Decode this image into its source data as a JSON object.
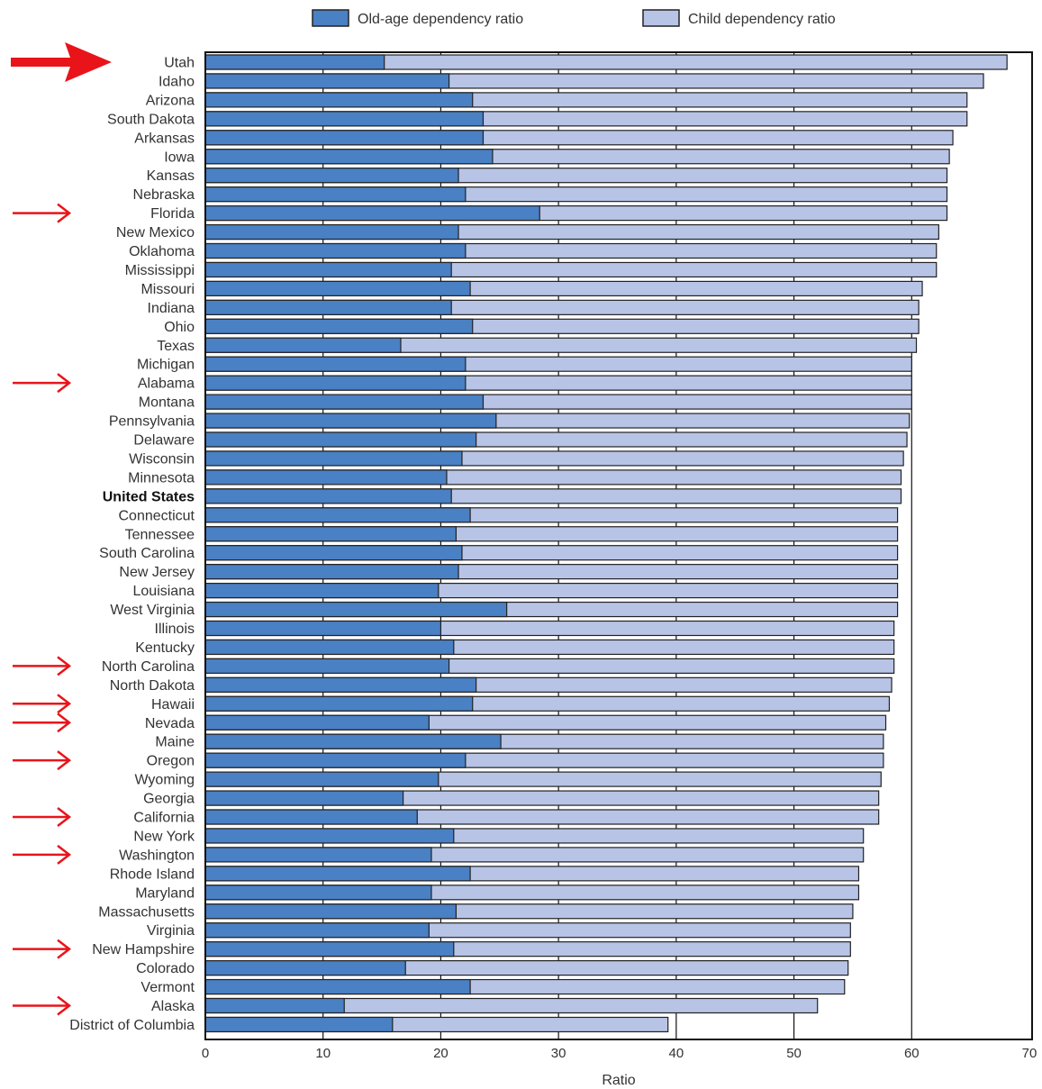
{
  "chart_data": {
    "type": "bar",
    "orientation": "horizontal",
    "stacked": true,
    "xlabel": "Ratio",
    "xlim": [
      0,
      70
    ],
    "xticks": [
      0,
      10,
      20,
      30,
      40,
      50,
      60,
      70
    ],
    "grid": "vertical",
    "legend": {
      "placement": "top"
    },
    "colors": {
      "old_age": "#4a80c4",
      "child": "#b8c4e6",
      "arrow": "#e8141a",
      "outline": "#222222"
    },
    "highlighted": "United States",
    "marked_categories": [
      "Utah",
      "Florida",
      "Alabama",
      "North Carolina",
      "Hawaii",
      "Nevada",
      "Oregon",
      "California",
      "Washington",
      "New Hampshire",
      "Alaska"
    ],
    "series": [
      {
        "name": "Old-age dependency ratio",
        "key": "old_age"
      },
      {
        "name": "Child dependency ratio",
        "key": "child"
      }
    ],
    "rows": [
      {
        "category": "Utah",
        "old_age": 15.2,
        "total": 68.1
      },
      {
        "category": "Idaho",
        "old_age": 20.7,
        "total": 66.1
      },
      {
        "category": "Arizona",
        "old_age": 22.7,
        "total": 64.7
      },
      {
        "category": "South Dakota",
        "old_age": 23.6,
        "total": 64.7
      },
      {
        "category": "Arkansas",
        "old_age": 23.6,
        "total": 63.5
      },
      {
        "category": "Iowa",
        "old_age": 24.4,
        "total": 63.2
      },
      {
        "category": "Kansas",
        "old_age": 21.5,
        "total": 63.0
      },
      {
        "category": "Nebraska",
        "old_age": 22.1,
        "total": 63.0
      },
      {
        "category": "Florida",
        "old_age": 28.4,
        "total": 63.0
      },
      {
        "category": "New Mexico",
        "old_age": 21.5,
        "total": 62.3
      },
      {
        "category": "Oklahoma",
        "old_age": 22.1,
        "total": 62.1
      },
      {
        "category": "Mississippi",
        "old_age": 20.9,
        "total": 62.1
      },
      {
        "category": "Missouri",
        "old_age": 22.5,
        "total": 60.9
      },
      {
        "category": "Indiana",
        "old_age": 20.9,
        "total": 60.6
      },
      {
        "category": "Ohio",
        "old_age": 22.7,
        "total": 60.6
      },
      {
        "category": "Texas",
        "old_age": 16.6,
        "total": 60.4
      },
      {
        "category": "Michigan",
        "old_age": 22.1,
        "total": 60.0
      },
      {
        "category": "Alabama",
        "old_age": 22.1,
        "total": 60.0
      },
      {
        "category": "Montana",
        "old_age": 23.6,
        "total": 60.0
      },
      {
        "category": "Pennsylvania",
        "old_age": 24.7,
        "total": 59.8
      },
      {
        "category": "Delaware",
        "old_age": 23.0,
        "total": 59.6
      },
      {
        "category": "Wisconsin",
        "old_age": 21.8,
        "total": 59.3
      },
      {
        "category": "Minnesota",
        "old_age": 20.5,
        "total": 59.1
      },
      {
        "category": "United States",
        "old_age": 20.9,
        "total": 59.1
      },
      {
        "category": "Connecticut",
        "old_age": 22.5,
        "total": 58.8
      },
      {
        "category": "Tennessee",
        "old_age": 21.3,
        "total": 58.8
      },
      {
        "category": "South Carolina",
        "old_age": 21.8,
        "total": 58.8
      },
      {
        "category": "New Jersey",
        "old_age": 21.5,
        "total": 58.8
      },
      {
        "category": "Louisiana",
        "old_age": 19.8,
        "total": 58.8
      },
      {
        "category": "West Virginia",
        "old_age": 25.6,
        "total": 58.8
      },
      {
        "category": "Illinois",
        "old_age": 20.0,
        "total": 58.5
      },
      {
        "category": "Kentucky",
        "old_age": 21.1,
        "total": 58.5
      },
      {
        "category": "North Carolina",
        "old_age": 20.7,
        "total": 58.5
      },
      {
        "category": "North Dakota",
        "old_age": 23.0,
        "total": 58.3
      },
      {
        "category": "Hawaii",
        "old_age": 22.7,
        "total": 58.1
      },
      {
        "category": "Nevada",
        "old_age": 19.0,
        "total": 57.8
      },
      {
        "category": "Maine",
        "old_age": 25.1,
        "total": 57.6
      },
      {
        "category": "Oregon",
        "old_age": 22.1,
        "total": 57.6
      },
      {
        "category": "Wyoming",
        "old_age": 19.8,
        "total": 57.4
      },
      {
        "category": "Georgia",
        "old_age": 16.8,
        "total": 57.2
      },
      {
        "category": "California",
        "old_age": 18.0,
        "total": 57.2
      },
      {
        "category": "New York",
        "old_age": 21.1,
        "total": 55.9
      },
      {
        "category": "Washington",
        "old_age": 19.2,
        "total": 55.9
      },
      {
        "category": "Rhode Island",
        "old_age": 22.5,
        "total": 55.5
      },
      {
        "category": "Maryland",
        "old_age": 19.2,
        "total": 55.5
      },
      {
        "category": "Massachusetts",
        "old_age": 21.3,
        "total": 55.0
      },
      {
        "category": "Virginia",
        "old_age": 19.0,
        "total": 54.8
      },
      {
        "category": "New Hampshire",
        "old_age": 21.1,
        "total": 54.8
      },
      {
        "category": "Colorado",
        "old_age": 17.0,
        "total": 54.6
      },
      {
        "category": "Vermont",
        "old_age": 22.5,
        "total": 54.3
      },
      {
        "category": "Alaska",
        "old_age": 11.8,
        "total": 52.0
      },
      {
        "category": "District of Columbia",
        "old_age": 15.9,
        "total": 39.3
      }
    ]
  }
}
